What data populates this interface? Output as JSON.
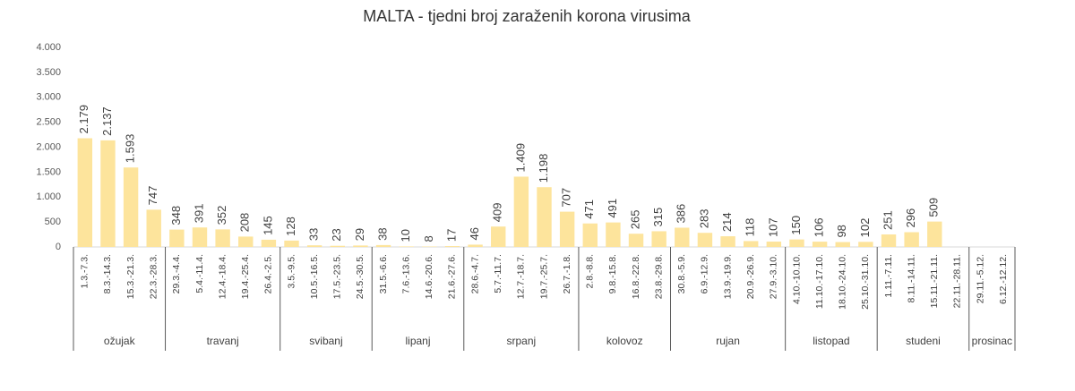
{
  "chart_data": {
    "type": "bar",
    "title": "MALTA - tjedni broj zaraženih korona virusima",
    "color": "#fde49c",
    "ylim": [
      0,
      4000
    ],
    "yticks": [
      0,
      500,
      {
        "value": 1000,
        "label": "1.000"
      },
      {
        "value": 1500,
        "label": "1.500"
      },
      {
        "value": 2000,
        "label": "2.000"
      },
      {
        "value": 2500,
        "label": "2.500"
      },
      {
        "value": 3000,
        "label": "3.000"
      },
      {
        "value": 3500,
        "label": "3.500"
      },
      {
        "value": 4000,
        "label": "4.000"
      }
    ],
    "grid": false,
    "groups": [
      {
        "name": "ožujak",
        "categories": [
          "1.3.-7.3.",
          "8.3.-14.3.",
          "15.3.-21.3.",
          "22.3.-28.3."
        ],
        "values": [
          2179,
          2137,
          1593,
          747
        ],
        "value_labels": [
          "2.179",
          "2.137",
          "1.593",
          "747"
        ]
      },
      {
        "name": "travanj",
        "categories": [
          "29.3.-4.4.",
          "5.4.-11.4.",
          "12.4.-18.4.",
          "19.4.-25.4.",
          "26.4.-2.5."
        ],
        "values": [
          348,
          391,
          352,
          208,
          145
        ],
        "value_labels": [
          "348",
          "391",
          "352",
          "208",
          "145"
        ]
      },
      {
        "name": "svibanj",
        "categories": [
          "3.5.-9.5.",
          "10.5.-16.5.",
          "17.5.-23.5.",
          "24.5.-30.5."
        ],
        "values": [
          128,
          33,
          23,
          29
        ],
        "value_labels": [
          "128",
          "33",
          "23",
          "29"
        ]
      },
      {
        "name": "lipanj",
        "categories": [
          "31.5.-6.6.",
          "7.6.-13.6.",
          "14.6.-20.6.",
          "21.6.-27.6."
        ],
        "values": [
          38,
          10,
          8,
          17
        ],
        "value_labels": [
          "38",
          "10",
          "8",
          "17"
        ]
      },
      {
        "name": "srpanj",
        "categories": [
          "28.6.-4.7.",
          "5.7.-11.7.",
          "12.7.-18.7.",
          "19.7.-25.7.",
          "26.7.-1.8."
        ],
        "values": [
          46,
          409,
          1409,
          1198,
          707
        ],
        "value_labels": [
          "46",
          "409",
          "1.409",
          "1.198",
          "707"
        ]
      },
      {
        "name": "kolovoz",
        "categories": [
          "2.8.-8.8.",
          "9.8.-15.8.",
          "16.8.-22.8.",
          "23.8.-29.8."
        ],
        "values": [
          471,
          491,
          265,
          315
        ],
        "value_labels": [
          "471",
          "491",
          "265",
          "315"
        ]
      },
      {
        "name": "rujan",
        "categories": [
          "30.8.-5.9.",
          "6.9.-12.9.",
          "13.9.-19.9.",
          "20.9.-26.9.",
          "27.9.-3.10."
        ],
        "values": [
          386,
          283,
          214,
          118,
          107
        ],
        "value_labels": [
          "386",
          "283",
          "214",
          "118",
          "107"
        ]
      },
      {
        "name": "listopad",
        "categories": [
          "4.10.-10.10.",
          "11.10.-17.10.",
          "18.10.-24.10.",
          "25.10.-31.10."
        ],
        "values": [
          150,
          106,
          98,
          102
        ],
        "value_labels": [
          "150",
          "106",
          "98",
          "102"
        ]
      },
      {
        "name": "studeni",
        "categories": [
          "1.11.-7.11.",
          "8.11.-14.11.",
          "15.11.-21.11.",
          "22.11.-28.11."
        ],
        "values": [
          251,
          296,
          509,
          null
        ],
        "value_labels": [
          "251",
          "296",
          "509",
          null
        ]
      },
      {
        "name": "prosinac",
        "categories": [
          "29.11.-5.12.",
          "6.12.-12.12."
        ],
        "values": [
          null,
          null
        ],
        "value_labels": [
          null,
          null
        ]
      }
    ]
  }
}
